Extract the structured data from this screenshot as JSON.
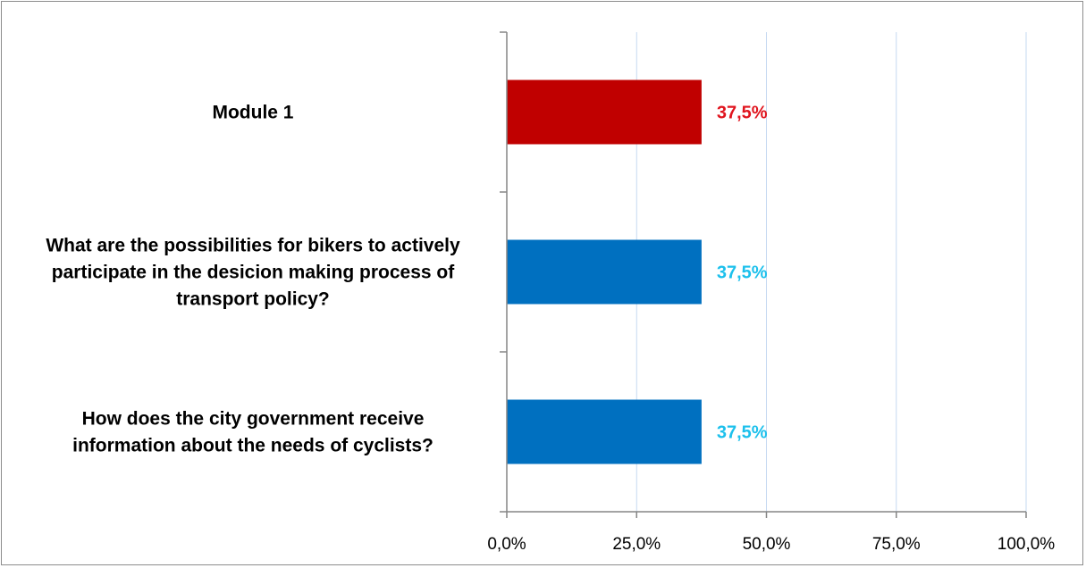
{
  "chart_data": {
    "type": "bar",
    "orientation": "horizontal",
    "title": "",
    "xlabel": "",
    "ylabel": "",
    "xlim": [
      0,
      100
    ],
    "x_ticks": [
      0,
      25,
      50,
      75,
      100
    ],
    "x_tick_labels": [
      "0,0%",
      "25,0%",
      "50,0%",
      "75,0%",
      "100,0%"
    ],
    "grid": "vertical",
    "legend": "none",
    "categories": [
      {
        "lines": [
          "Module 1"
        ],
        "value": 37.5,
        "data_label": "37,5%",
        "bar_color": "#c00000",
        "label_color": "#e0141e"
      },
      {
        "lines": [
          "What are the possibilities for bikers to actively",
          "participate in the desicion making process of",
          "transport policy?"
        ],
        "value": 37.5,
        "data_label": "37,5%",
        "bar_color": "#0070c0",
        "label_color": "#1cc0ec"
      },
      {
        "lines": [
          "How does the city government receive",
          "information about the needs of cyclists?"
        ],
        "value": 37.5,
        "data_label": "37,5%",
        "bar_color": "#0070c0",
        "label_color": "#1cc0ec"
      }
    ],
    "colors": {
      "gridline": "#c6d9f1",
      "axis": "#868686",
      "frame": "#8c8c8c"
    }
  }
}
